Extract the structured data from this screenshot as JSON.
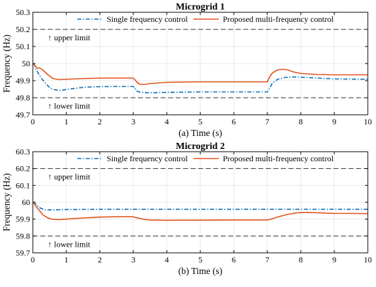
{
  "colors": {
    "single": "#0a6fb5",
    "proposed": "#e2531f",
    "limit": "#333333",
    "grid": "#e3e3e3",
    "axis": "#000000"
  },
  "chart_data": [
    {
      "type": "line",
      "title": "Microgrid 1",
      "xlabel": "(a) Time (s)",
      "ylabel": "Frequency (Hz)",
      "xlim": [
        0,
        10
      ],
      "ylim": [
        49.7,
        50.3
      ],
      "xticks": [
        "0",
        "1",
        "2",
        "3",
        "4",
        "5",
        "6",
        "7",
        "8",
        "9",
        "10"
      ],
      "yticks": [
        "49.7",
        "49.8",
        "49.9",
        "50",
        "50.1",
        "50.2",
        "50.3"
      ],
      "grid": true,
      "legend": "top",
      "series": [
        {
          "name": "Single frequency control",
          "style": "dash-dot",
          "x": [
            0,
            0.05,
            0.1,
            0.2,
            0.35,
            0.5,
            0.6,
            0.8,
            1.0,
            1.3,
            1.6,
            2.0,
            2.5,
            3.0,
            3.05,
            3.1,
            3.2,
            3.3,
            3.5,
            4.0,
            5.0,
            6.0,
            7.0,
            7.05,
            7.15,
            7.3,
            7.5,
            7.8,
            8.0,
            8.5,
            9.0,
            10.0
          ],
          "y": [
            50.0,
            49.99,
            49.965,
            49.93,
            49.89,
            49.86,
            49.848,
            49.843,
            49.848,
            49.856,
            49.862,
            49.865,
            49.866,
            49.866,
            49.855,
            49.84,
            49.832,
            49.83,
            49.829,
            49.831,
            49.834,
            49.834,
            49.834,
            49.85,
            49.885,
            49.907,
            49.918,
            49.922,
            49.92,
            49.915,
            49.91,
            49.908
          ]
        },
        {
          "name": "Proposed multi-frequency control",
          "style": "solid",
          "x": [
            0,
            0.05,
            0.1,
            0.15,
            0.2,
            0.3,
            0.45,
            0.6,
            0.8,
            1.0,
            1.5,
            2.0,
            2.5,
            3.0,
            3.05,
            3.12,
            3.2,
            3.35,
            3.5,
            4.0,
            5.0,
            6.0,
            7.0,
            7.05,
            7.15,
            7.3,
            7.45,
            7.6,
            7.8,
            8.0,
            8.5,
            9.0,
            10.0
          ],
          "y": [
            50.0,
            49.992,
            49.98,
            49.972,
            49.975,
            49.962,
            49.935,
            49.912,
            49.906,
            49.908,
            49.912,
            49.915,
            49.915,
            49.915,
            49.905,
            49.888,
            49.879,
            49.878,
            49.883,
            49.89,
            49.893,
            49.893,
            49.893,
            49.915,
            49.945,
            49.962,
            49.967,
            49.963,
            49.95,
            49.942,
            49.936,
            49.934,
            49.934
          ]
        }
      ],
      "annotations": [
        "↑ upper limit",
        "↑ lower limit"
      ],
      "limit_lines": [
        50.2,
        49.8
      ]
    },
    {
      "type": "line",
      "title": "Microgrid 2",
      "xlabel": "(b) Time (s)",
      "ylabel": "Frequency (Hz)",
      "xlim": [
        0,
        10
      ],
      "ylim": [
        59.7,
        60.3
      ],
      "xticks": [
        "0",
        "1",
        "2",
        "3",
        "4",
        "5",
        "6",
        "7",
        "8",
        "9",
        "10"
      ],
      "yticks": [
        "59.7",
        "59.8",
        "59.9",
        "60",
        "60.1",
        "60.2",
        "60.3"
      ],
      "grid": true,
      "legend": "top",
      "series": [
        {
          "name": "Single frequency control",
          "style": "dash-dot",
          "x": [
            0,
            0.05,
            0.12,
            0.2,
            0.3,
            0.4,
            0.6,
            1.0,
            2.0,
            3.0,
            4.0,
            5.0,
            6.0,
            7.0,
            8.0,
            9.0,
            10.0
          ],
          "y": [
            60.0,
            59.995,
            59.982,
            59.968,
            59.959,
            59.955,
            59.955,
            59.957,
            59.958,
            59.958,
            59.958,
            59.958,
            59.958,
            59.958,
            59.958,
            59.958,
            59.958
          ]
        },
        {
          "name": "Proposed multi-frequency control",
          "style": "solid",
          "x": [
            0,
            0.05,
            0.1,
            0.2,
            0.3,
            0.45,
            0.6,
            0.8,
            1.0,
            1.5,
            2.0,
            2.5,
            3.0,
            3.1,
            3.3,
            3.5,
            4.0,
            5.0,
            6.0,
            7.0,
            7.1,
            7.3,
            7.6,
            7.9,
            8.2,
            8.6,
            9.0,
            10.0
          ],
          "y": [
            60.0,
            59.99,
            59.975,
            59.95,
            59.925,
            59.907,
            59.898,
            59.897,
            59.9,
            59.907,
            59.912,
            59.914,
            59.914,
            59.908,
            59.9,
            59.895,
            59.893,
            59.894,
            59.895,
            59.895,
            59.9,
            59.912,
            59.928,
            59.938,
            59.94,
            59.937,
            59.934,
            59.933
          ]
        }
      ],
      "annotations": [
        "↑ upper limit",
        "↑ lower limit"
      ],
      "limit_lines": [
        60.2,
        59.8
      ]
    }
  ]
}
